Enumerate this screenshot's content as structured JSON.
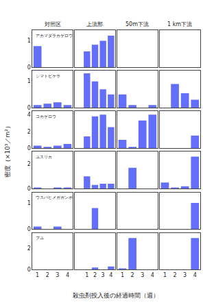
{
  "xlabel": "殺虫剤投入後の経過時間（週）",
  "ylabel": "密度（×10³／m²）",
  "chart_data": [
    {
      "type": "bar",
      "title": "対照区",
      "annotations": [
        "アカマダラカゲロウ"
      ],
      "x": [
        1,
        2,
        3,
        4
      ],
      "values": [
        0.8,
        0.0,
        0.0,
        0.0
      ],
      "xlim": [
        0.5,
        4.5
      ],
      "xticks": [
        1,
        2,
        3,
        4
      ],
      "ylim": [
        0,
        1.4
      ],
      "yticks": [
        0,
        1
      ],
      "grid": false,
      "color": "#636efa",
      "tick_labels": "y"
    },
    {
      "type": "bar",
      "title": "上流部",
      "x": [
        0,
        1,
        2,
        3,
        4
      ],
      "values": [
        0.0,
        0.6,
        0.85,
        1.0,
        1.2
      ],
      "xlim": [
        -0.5,
        4.5
      ],
      "xticks": [
        1,
        2,
        3,
        4
      ],
      "ylim": [
        0,
        1.4
      ],
      "yticks": [
        0,
        1
      ],
      "grid": false,
      "color": "#636efa",
      "tick_labels": false
    },
    {
      "type": "bar",
      "title": "50m下流",
      "x": [
        1,
        2,
        3,
        4
      ],
      "values": [
        0.0,
        0.0,
        0.0,
        0.0
      ],
      "xlim": [
        0.5,
        4.5
      ],
      "xticks": [
        1,
        2,
        3,
        4
      ],
      "ylim": [
        0,
        1.4
      ],
      "yticks": [
        0,
        1
      ],
      "grid": false,
      "color": "#636efa",
      "tick_labels": false
    },
    {
      "type": "bar",
      "title": "1 km下流",
      "x": [
        1,
        2,
        3,
        4
      ],
      "values": [
        0.0,
        0.0,
        0.0,
        0.0
      ],
      "xlim": [
        0.5,
        4.5
      ],
      "xticks": [
        1,
        2,
        3,
        4
      ],
      "ylim": [
        0,
        1.4
      ],
      "yticks": [
        0,
        1
      ],
      "grid": false,
      "color": "#636efa",
      "tick_labels": false
    },
    {
      "type": "bar",
      "annotations": [
        "シマトビケラ"
      ],
      "x": [
        1,
        2,
        3,
        4
      ],
      "values": [
        0.1,
        0.15,
        0.2,
        0.1
      ],
      "xlim": [
        0.5,
        4.5
      ],
      "xticks": [
        1,
        2,
        3,
        4
      ],
      "ylim": [
        0,
        1.4
      ],
      "yticks": [
        0,
        1
      ],
      "grid": false,
      "color": "#636efa",
      "tick_labels": "y"
    },
    {
      "type": "bar",
      "x": [
        0,
        1,
        2,
        3,
        4
      ],
      "values": [
        0.0,
        1.3,
        1.0,
        0.7,
        0.5
      ],
      "xlim": [
        -0.5,
        4.5
      ],
      "xticks": [
        1,
        2,
        3,
        4
      ],
      "ylim": [
        0,
        1.4
      ],
      "yticks": [
        0,
        1
      ],
      "grid": false,
      "color": "#636efa",
      "tick_labels": false
    },
    {
      "type": "bar",
      "x": [
        1,
        2,
        3,
        4
      ],
      "values": [
        0.5,
        0.1,
        0.0,
        0.1
      ],
      "xlim": [
        0.5,
        4.5
      ],
      "xticks": [
        1,
        2,
        3,
        4
      ],
      "ylim": [
        0,
        1.4
      ],
      "yticks": [
        0,
        1
      ],
      "grid": false,
      "color": "#636efa",
      "tick_labels": false
    },
    {
      "type": "bar",
      "x": [
        1,
        2,
        3,
        4
      ],
      "values": [
        0.0,
        0.9,
        0.55,
        0.3
      ],
      "xlim": [
        0.5,
        4.5
      ],
      "xticks": [
        1,
        2,
        3,
        4
      ],
      "ylim": [
        0,
        1.4
      ],
      "yticks": [
        0,
        1
      ],
      "grid": false,
      "color": "#636efa",
      "tick_labels": false
    },
    {
      "type": "bar",
      "annotations": [
        "コカゲロウ"
      ],
      "x": [
        1,
        2,
        3,
        4
      ],
      "values": [
        0.3,
        0.15,
        0.3,
        0.5
      ],
      "xlim": [
        0.5,
        4.5
      ],
      "xticks": [
        1,
        2,
        3,
        4
      ],
      "ylim": [
        0,
        4.4
      ],
      "yticks": [
        0,
        2,
        4
      ],
      "grid": false,
      "color": "#636efa",
      "tick_labels": "y"
    },
    {
      "type": "bar",
      "x": [
        0,
        1,
        2,
        3,
        4
      ],
      "values": [
        0.0,
        1.4,
        3.8,
        4.0,
        2.5
      ],
      "xlim": [
        -0.5,
        4.5
      ],
      "xticks": [
        1,
        2,
        3,
        4
      ],
      "ylim": [
        0,
        4.4
      ],
      "yticks": [
        0,
        2,
        4
      ],
      "grid": false,
      "color": "#636efa",
      "tick_labels": false
    },
    {
      "type": "bar",
      "x": [
        1,
        2,
        3,
        4
      ],
      "values": [
        1.0,
        0.1,
        3.3,
        4.0
      ],
      "xlim": [
        0.5,
        4.5
      ],
      "xticks": [
        1,
        2,
        3,
        4
      ],
      "ylim": [
        0,
        4.4
      ],
      "yticks": [
        0,
        2,
        4
      ],
      "grid": false,
      "color": "#636efa",
      "tick_labels": false
    },
    {
      "type": "bar",
      "x": [
        1,
        2,
        3,
        4
      ],
      "values": [
        0.0,
        0.0,
        0.0,
        1.5
      ],
      "xlim": [
        0.5,
        4.5
      ],
      "xticks": [
        1,
        2,
        3,
        4
      ],
      "ylim": [
        0,
        4.4
      ],
      "yticks": [
        0,
        2,
        4
      ],
      "grid": false,
      "color": "#636efa",
      "tick_labels": false
    },
    {
      "type": "bar",
      "annotations": [
        "ユスリカ"
      ],
      "x": [
        1,
        2,
        3,
        4
      ],
      "values": [
        0.1,
        0.0,
        0.1,
        0.1
      ],
      "xlim": [
        0.5,
        4.5
      ],
      "xticks": [
        1,
        2,
        3,
        4
      ],
      "ylim": [
        0,
        3.0
      ],
      "yticks": [
        0,
        2
      ],
      "grid": false,
      "color": "#636efa",
      "tick_labels": "y"
    },
    {
      "type": "bar",
      "x": [
        0,
        1,
        2,
        3,
        4
      ],
      "values": [
        0.0,
        1.0,
        0.3,
        0.4,
        0.4
      ],
      "xlim": [
        -0.5,
        4.5
      ],
      "xticks": [
        1,
        2,
        3,
        4
      ],
      "ylim": [
        0,
        3.0
      ],
      "yticks": [
        0,
        2
      ],
      "grid": false,
      "color": "#636efa",
      "tick_labels": false
    },
    {
      "type": "bar",
      "x": [
        1,
        2,
        3,
        4
      ],
      "values": [
        0.0,
        1.7,
        0.0,
        0.0
      ],
      "xlim": [
        0.5,
        4.5
      ],
      "xticks": [
        1,
        2,
        3,
        4
      ],
      "ylim": [
        0,
        3.0
      ],
      "yticks": [
        0,
        2
      ],
      "grid": false,
      "color": "#636efa",
      "tick_labels": false
    },
    {
      "type": "bar",
      "x": [
        1,
        2,
        3,
        4
      ],
      "values": [
        0.5,
        0.1,
        0.2,
        2.6
      ],
      "xlim": [
        0.5,
        4.5
      ],
      "xticks": [
        1,
        2,
        3,
        4
      ],
      "ylim": [
        0,
        3.0
      ],
      "yticks": [
        0,
        2
      ],
      "grid": false,
      "color": "#636efa",
      "tick_labels": false
    },
    {
      "type": "bar",
      "annotations": [
        "ウスバヒメガガンボ"
      ],
      "x": [
        1,
        2,
        3,
        4
      ],
      "values": [
        0.1,
        0.0,
        0.1,
        0.0
      ],
      "xlim": [
        0.5,
        4.5
      ],
      "xticks": [
        1,
        2,
        3,
        4
      ],
      "ylim": [
        0,
        1.4
      ],
      "yticks": [
        0,
        1
      ],
      "grid": false,
      "color": "#636efa",
      "tick_labels": "y"
    },
    {
      "type": "bar",
      "x": [
        0,
        1,
        2,
        3,
        4
      ],
      "values": [
        0.0,
        0.0,
        0.8,
        0.0,
        0.0
      ],
      "xlim": [
        -0.5,
        4.5
      ],
      "xticks": [
        1,
        2,
        3,
        4
      ],
      "ylim": [
        0,
        1.4
      ],
      "yticks": [
        0,
        1
      ],
      "grid": false,
      "color": "#636efa",
      "tick_labels": false
    },
    {
      "type": "bar",
      "x": [
        1,
        2,
        3,
        4
      ],
      "values": [
        0.0,
        0.0,
        0.0,
        0.0
      ],
      "xlim": [
        0.5,
        4.5
      ],
      "xticks": [
        1,
        2,
        3,
        4
      ],
      "ylim": [
        0,
        1.4
      ],
      "yticks": [
        0,
        1
      ],
      "grid": false,
      "color": "#636efa",
      "tick_labels": false
    },
    {
      "type": "bar",
      "x": [
        1,
        2,
        3,
        4
      ],
      "values": [
        0.0,
        0.0,
        0.0,
        1.0
      ],
      "xlim": [
        0.5,
        4.5
      ],
      "xticks": [
        1,
        2,
        3,
        4
      ],
      "ylim": [
        0,
        1.4
      ],
      "yticks": [
        0,
        1
      ],
      "grid": false,
      "color": "#636efa",
      "tick_labels": false
    },
    {
      "type": "bar",
      "annotations": [
        "ブユ"
      ],
      "x": [
        1,
        2,
        3,
        4
      ],
      "values": [
        0.0,
        0.0,
        0.0,
        0.0
      ],
      "xlim": [
        0.5,
        4.5
      ],
      "xticks": [
        1,
        2,
        3,
        4
      ],
      "ylim": [
        0,
        3.5
      ],
      "yticks": [
        0,
        2
      ],
      "grid": false,
      "color": "#636efa"
    },
    {
      "type": "bar",
      "x": [
        0,
        1,
        2,
        3,
        4
      ],
      "values": [
        0.0,
        0.0,
        0.2,
        0.0,
        0.3
      ],
      "xlim": [
        -0.5,
        4.5
      ],
      "xticks": [
        1,
        2,
        3,
        4
      ],
      "ylim": [
        0,
        3.5
      ],
      "yticks": [
        0,
        2
      ],
      "grid": false,
      "color": "#636efa",
      "tick_labels": "x"
    },
    {
      "type": "bar",
      "x": [
        1,
        2,
        3,
        4
      ],
      "values": [
        0.1,
        3.0,
        0.0,
        0.0
      ],
      "xlim": [
        0.5,
        4.5
      ],
      "xticks": [
        1,
        2,
        3,
        4
      ],
      "ylim": [
        0,
        3.5
      ],
      "yticks": [
        0,
        2
      ],
      "grid": false,
      "color": "#636efa",
      "tick_labels": "x"
    },
    {
      "type": "bar",
      "x": [
        1,
        2,
        3,
        4
      ],
      "values": [
        0.0,
        0.0,
        0.0,
        3.0
      ],
      "xlim": [
        0.5,
        4.5
      ],
      "xticks": [
        1,
        2,
        3,
        4
      ],
      "ylim": [
        0,
        3.5
      ],
      "yticks": [
        0,
        2
      ],
      "grid": false,
      "color": "#636efa",
      "tick_labels": "x"
    }
  ]
}
